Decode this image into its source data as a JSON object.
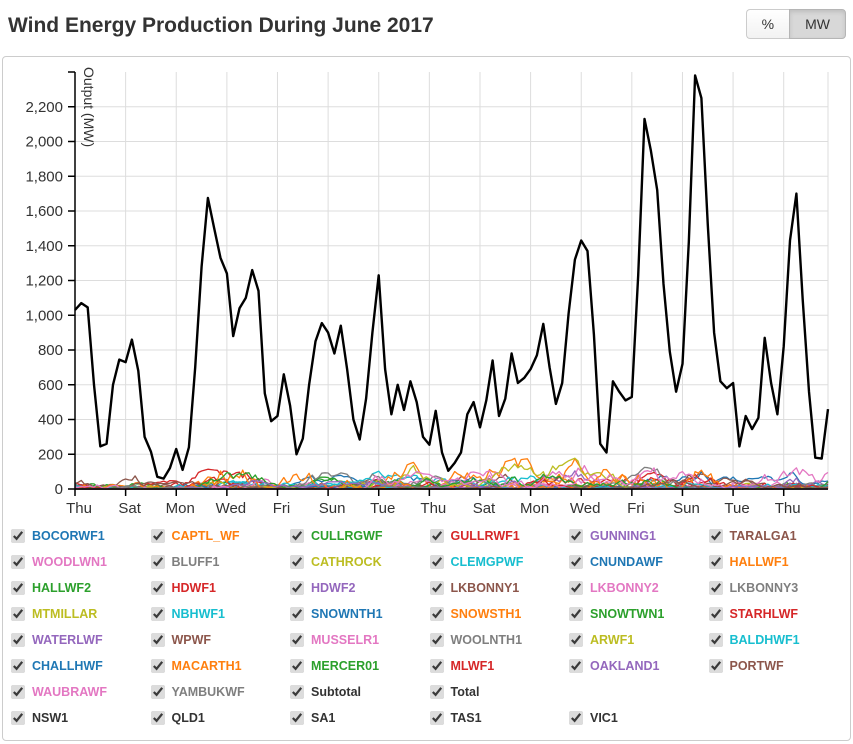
{
  "header": {
    "title": "Wind Energy Production During June 2017",
    "unit_toggle": {
      "percent_label": "%",
      "mw_label": "MW",
      "selected": "MW"
    }
  },
  "chart_data": {
    "type": "line",
    "title": "Wind Energy Production During June 2017",
    "xlabel": "",
    "ylabel": "Output (MW)",
    "ylim": [
      0,
      2400
    ],
    "y_tick_step": 200,
    "y_labeled_tick_max": 2200,
    "grid": true,
    "x_range_days": [
      0,
      29.75
    ],
    "x_tick_days": [
      0,
      2,
      4,
      6,
      8,
      10,
      12,
      14,
      16,
      18,
      20,
      22,
      24,
      26,
      28
    ],
    "x_tick_labels": [
      "Thu",
      "Sat",
      "Mon",
      "Wed",
      "Fri",
      "Sun",
      "Tue",
      "Thu",
      "Sat",
      "Mon",
      "Wed",
      "Fri",
      "Sun",
      "Tue",
      "Thu"
    ],
    "total_series": {
      "name": "Total",
      "color": "#000000",
      "interval_hours": 6,
      "values": [
        1030,
        1070,
        1045,
        600,
        245,
        260,
        600,
        745,
        730,
        860,
        680,
        300,
        215,
        70,
        60,
        120,
        230,
        110,
        240,
        700,
        1280,
        1675,
        1500,
        1330,
        1240,
        880,
        1040,
        1100,
        1260,
        1140,
        550,
        390,
        420,
        660,
        480,
        200,
        290,
        600,
        850,
        955,
        900,
        780,
        940,
        690,
        400,
        285,
        520,
        900,
        1230,
        690,
        430,
        600,
        455,
        620,
        500,
        300,
        255,
        450,
        210,
        105,
        150,
        210,
        430,
        500,
        355,
        510,
        740,
        420,
        520,
        780,
        610,
        640,
        690,
        770,
        950,
        700,
        490,
        610,
        1010,
        1320,
        1430,
        1370,
        890,
        260,
        210,
        620,
        560,
        510,
        530,
        1230,
        2130,
        1950,
        1720,
        1180,
        790,
        560,
        720,
        1420,
        2380,
        2250,
        1520,
        900,
        620,
        580,
        610,
        245,
        420,
        345,
        410,
        870,
        610,
        430,
        820,
        1430,
        1700,
        1090,
        560,
        180,
        175,
        460
      ]
    },
    "farms_note": "38 heavily-overlapping individual wind-farm series hug the bottom of the plot; each fluctuates between 0 and its approximate peak (approx_max_mw below)."
  },
  "legend": {
    "farms": [
      {
        "label": "BOCORWF1",
        "color": "#1f77b4",
        "checked": true,
        "approx_max_mw": 110
      },
      {
        "label": "CAPTL_WF",
        "color": "#ff7f0e",
        "checked": true,
        "approx_max_mw": 140
      },
      {
        "label": "CULLRGWF",
        "color": "#2ca02c",
        "checked": true,
        "approx_max_mw": 120
      },
      {
        "label": "GULLRWF1",
        "color": "#d62728",
        "checked": true,
        "approx_max_mw": 140
      },
      {
        "label": "GUNNING1",
        "color": "#9467bd",
        "checked": true,
        "approx_max_mw": 45
      },
      {
        "label": "TARALGA1",
        "color": "#8c564b",
        "checked": true,
        "approx_max_mw": 100
      },
      {
        "label": "WOODLWN1",
        "color": "#e377c2",
        "checked": true,
        "approx_max_mw": 45
      },
      {
        "label": "BLUFF1",
        "color": "#7f7f7f",
        "checked": true,
        "approx_max_mw": 50
      },
      {
        "label": "CATHROCK",
        "color": "#bcbd22",
        "checked": true,
        "approx_max_mw": 60
      },
      {
        "label": "CLEMGPWF",
        "color": "#17becf",
        "checked": true,
        "approx_max_mw": 55
      },
      {
        "label": "CNUNDAWF",
        "color": "#1f77b4",
        "checked": true,
        "approx_max_mw": 45
      },
      {
        "label": "HALLWF1",
        "color": "#ff7f0e",
        "checked": true,
        "approx_max_mw": 90
      },
      {
        "label": "HALLWF2",
        "color": "#2ca02c",
        "checked": true,
        "approx_max_mw": 70
      },
      {
        "label": "HDWF1",
        "color": "#d62728",
        "checked": true,
        "approx_max_mw": 130
      },
      {
        "label": "HDWF2",
        "color": "#9467bd",
        "checked": true,
        "approx_max_mw": 130
      },
      {
        "label": "LKBONNY1",
        "color": "#8c564b",
        "checked": true,
        "approx_max_mw": 150
      },
      {
        "label": "LKBONNY2",
        "color": "#e377c2",
        "checked": true,
        "approx_max_mw": 155
      },
      {
        "label": "LKBONNY3",
        "color": "#7f7f7f",
        "checked": true,
        "approx_max_mw": 35
      },
      {
        "label": "MTMILLAR",
        "color": "#bcbd22",
        "checked": true,
        "approx_max_mw": 65
      },
      {
        "label": "NBHWF1",
        "color": "#17becf",
        "checked": true,
        "approx_max_mw": 130
      },
      {
        "label": "SNOWNTH1",
        "color": "#1f77b4",
        "checked": true,
        "approx_max_mw": 140
      },
      {
        "label": "SNOWSTH1",
        "color": "#ff7f0e",
        "checked": true,
        "approx_max_mw": 270
      },
      {
        "label": "SNOWTWN1",
        "color": "#2ca02c",
        "checked": true,
        "approx_max_mw": 95
      },
      {
        "label": "STARHLWF",
        "color": "#d62728",
        "checked": true,
        "approx_max_mw": 120
      },
      {
        "label": "WATERLWF",
        "color": "#9467bd",
        "checked": true,
        "approx_max_mw": 110
      },
      {
        "label": "WPWF",
        "color": "#8c564b",
        "checked": true,
        "approx_max_mw": 85
      },
      {
        "label": "MUSSELR1",
        "color": "#e377c2",
        "checked": true,
        "approx_max_mw": 165
      },
      {
        "label": "WOOLNTH1",
        "color": "#7f7f7f",
        "checked": true,
        "approx_max_mw": 130
      },
      {
        "label": "ARWF1",
        "color": "#bcbd22",
        "checked": true,
        "approx_max_mw": 220
      },
      {
        "label": "BALDHWF1",
        "color": "#17becf",
        "checked": true,
        "approx_max_mw": 100
      },
      {
        "label": "CHALLHWF",
        "color": "#1f77b4",
        "checked": true,
        "approx_max_mw": 70
      },
      {
        "label": "MACARTH1",
        "color": "#ff7f0e",
        "checked": true,
        "approx_max_mw": 380
      },
      {
        "label": "MERCER01",
        "color": "#2ca02c",
        "checked": true,
        "approx_max_mw": 120
      },
      {
        "label": "MLWF1",
        "color": "#d62728",
        "checked": true,
        "approx_max_mw": 60
      },
      {
        "label": "OAKLAND1",
        "color": "#9467bd",
        "checked": true,
        "approx_max_mw": 60
      },
      {
        "label": "PORTWF",
        "color": "#8c564b",
        "checked": true,
        "approx_max_mw": 85
      },
      {
        "label": "WAUBRAWF",
        "color": "#e377c2",
        "checked": true,
        "approx_max_mw": 170
      },
      {
        "label": "YAMBUKWF",
        "color": "#7f7f7f",
        "checked": true,
        "approx_max_mw": 25
      }
    ],
    "aggregates": [
      {
        "label": "Subtotal",
        "color": "#333333",
        "checked": true
      },
      {
        "label": "Total",
        "color": "#333333",
        "checked": true
      }
    ],
    "regions": [
      {
        "label": "NSW1",
        "color": "#333333",
        "checked": true
      },
      {
        "label": "QLD1",
        "color": "#333333",
        "checked": true
      },
      {
        "label": "SA1",
        "color": "#333333",
        "checked": true
      },
      {
        "label": "TAS1",
        "color": "#333333",
        "checked": true
      },
      {
        "label": "VIC1",
        "color": "#333333",
        "checked": true
      }
    ]
  }
}
